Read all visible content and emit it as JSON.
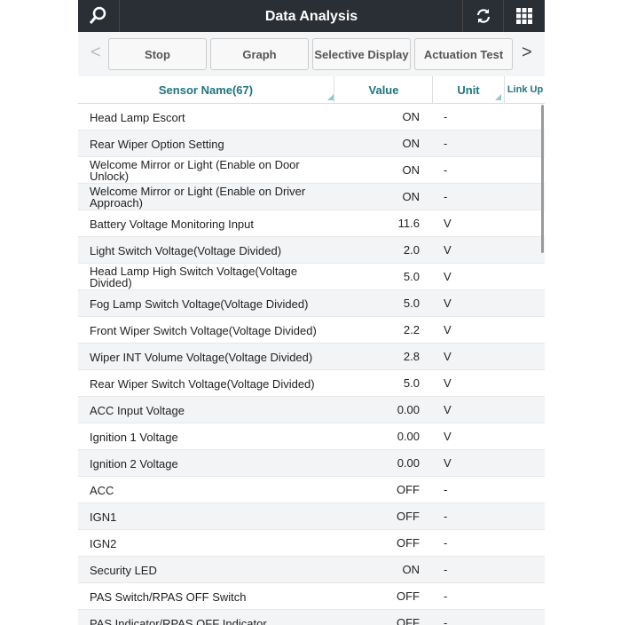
{
  "header": {
    "title": "Data Analysis",
    "icons": [
      "search-icon",
      "refresh-icon",
      "grid-menu-icon"
    ]
  },
  "toolbar": {
    "buttons": [
      "Stop",
      "Graph",
      "Selective Display",
      "Actuation Test"
    ],
    "prev": "<",
    "next": ">"
  },
  "table": {
    "columns": {
      "name": "Sensor Name(67)",
      "value": "Value",
      "unit": "Unit",
      "link": "Link Up"
    },
    "rows": [
      {
        "name": "Head Lamp Escort",
        "value": "ON",
        "unit": "-"
      },
      {
        "name": "Rear Wiper Option Setting",
        "value": "ON",
        "unit": "-"
      },
      {
        "name": "Welcome Mirror or Light (Enable on Door Unlock)",
        "value": "ON",
        "unit": "-"
      },
      {
        "name": "Welcome Mirror or Light (Enable on Driver Approach)",
        "value": "ON",
        "unit": "-"
      },
      {
        "name": "Battery Voltage Monitoring Input",
        "value": "11.6",
        "unit": "V"
      },
      {
        "name": "Light Switch Voltage(Voltage Divided)",
        "value": "2.0",
        "unit": "V"
      },
      {
        "name": "Head Lamp High Switch Voltage(Voltage Divided)",
        "value": "5.0",
        "unit": "V"
      },
      {
        "name": "Fog Lamp Switch Voltage(Voltage Divided)",
        "value": "5.0",
        "unit": "V"
      },
      {
        "name": "Front Wiper Switch Voltage(Voltage Divided)",
        "value": "2.2",
        "unit": "V"
      },
      {
        "name": "Wiper INT Volume Voltage(Voltage Divided)",
        "value": "2.8",
        "unit": "V"
      },
      {
        "name": "Rear Wiper Switch Voltage(Voltage Divided)",
        "value": "5.0",
        "unit": "V"
      },
      {
        "name": "ACC Input Voltage",
        "value": "0.00",
        "unit": "V"
      },
      {
        "name": "Ignition 1 Voltage",
        "value": "0.00",
        "unit": "V"
      },
      {
        "name": "Ignition 2 Voltage",
        "value": "0.00",
        "unit": "V"
      },
      {
        "name": "ACC",
        "value": "OFF",
        "unit": "-"
      },
      {
        "name": "IGN1",
        "value": "OFF",
        "unit": "-"
      },
      {
        "name": "IGN2",
        "value": "OFF",
        "unit": "-"
      },
      {
        "name": "Security LED",
        "value": "ON",
        "unit": "-"
      },
      {
        "name": "PAS Switch/RPAS OFF Switch",
        "value": "OFF",
        "unit": "-"
      },
      {
        "name": "PAS Indicator/RPAS OFF Indicator",
        "value": "OFF",
        "unit": "-"
      }
    ]
  }
}
